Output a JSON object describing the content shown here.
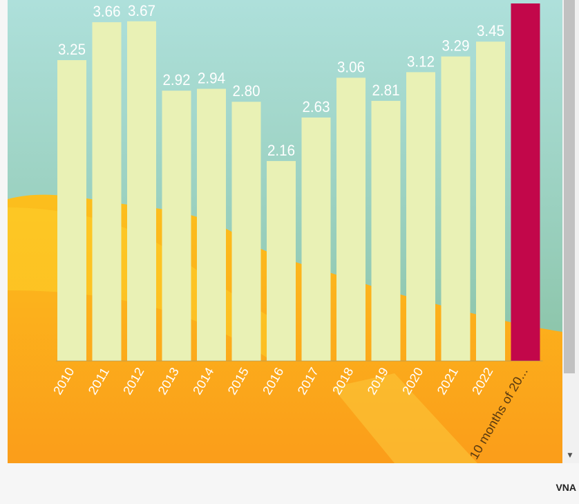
{
  "chart_data": {
    "type": "bar",
    "categories": [
      "2010",
      "2011",
      "2012",
      "2013",
      "2014",
      "2015",
      "2016",
      "2017",
      "2018",
      "2019",
      "2020",
      "2021",
      "2022",
      "10 months of 20..."
    ],
    "values": [
      3.25,
      3.66,
      3.67,
      2.92,
      2.94,
      2.8,
      2.16,
      2.63,
      3.06,
      2.81,
      3.12,
      3.29,
      3.45,
      null
    ],
    "data_labels": [
      "3.25",
      "3.66",
      "3.67",
      "2.92",
      "2.94",
      "2.80",
      "2.16",
      "2.63",
      "3.06",
      "2.81",
      "3.12",
      "3.29",
      "3.45",
      ""
    ],
    "ylim": [
      0,
      3.9
    ],
    "grid": false,
    "colors": {
      "bar": "#e9f1b5",
      "highlight_bar": "#c2074a",
      "sky_top": "#aadfd9",
      "sky_bottom": "#85bfa0",
      "ground": "#fba91a"
    },
    "highlight_note": "last bar exceeds the visible area and shows no data label"
  },
  "source": "VNA",
  "ui": {
    "scroll_down_icon": "triangle-down"
  }
}
